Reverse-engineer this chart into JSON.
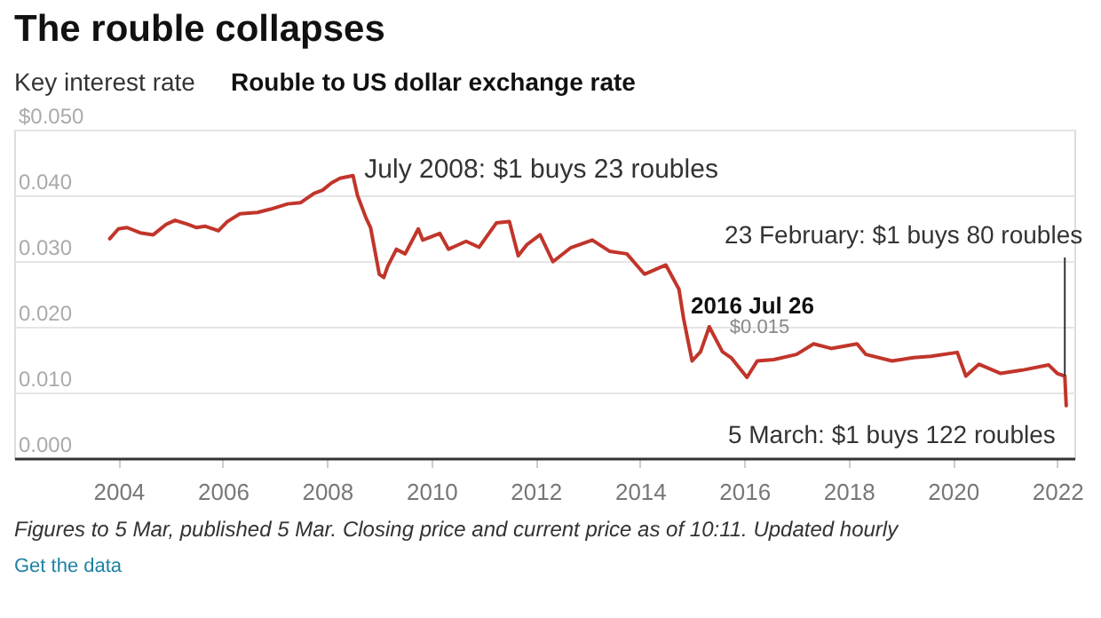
{
  "chart_data": {
    "type": "line",
    "title": "The rouble collapses",
    "subtitle": "Rouble to US dollar exchange rate",
    "x": [
      "2003-11",
      "2004-01",
      "2004-03",
      "2004-06",
      "2004-09",
      "2004-12",
      "2005-02",
      "2005-05",
      "2005-07",
      "2005-09",
      "2005-12",
      "2006-02",
      "2006-05",
      "2006-09",
      "2006-12",
      "2007-04",
      "2007-07",
      "2007-10",
      "2007-12",
      "2008-02",
      "2008-04",
      "2008-07",
      "2008-08",
      "2008-10",
      "2008-11",
      "2009-01",
      "2009-02",
      "2009-03",
      "2009-05",
      "2009-07",
      "2009-10",
      "2009-11",
      "2010-03",
      "2010-05",
      "2010-09",
      "2010-12",
      "2011-04",
      "2011-07",
      "2011-09",
      "2011-11",
      "2012-02",
      "2012-05",
      "2012-09",
      "2013-02",
      "2013-06",
      "2013-10",
      "2014-02",
      "2014-07",
      "2014-10",
      "2014-11",
      "2014-12",
      "2015-01",
      "2015-03",
      "2015-05",
      "2015-08",
      "2015-10",
      "2016-01-20",
      "2016-04",
      "2016-07-26",
      "2017-01",
      "2017-05",
      "2017-09",
      "2018-03",
      "2018-05",
      "2018-11",
      "2019-04",
      "2019-08",
      "2020-02",
      "2020-04",
      "2020-07",
      "2020-12",
      "2021-05",
      "2021-11",
      "2022-01",
      "2022-02-23",
      "2022-03-05"
    ],
    "series": [
      {
        "color": "#c1352b",
        "values": [
          0.0334,
          0.0349,
          0.0351,
          0.0343,
          0.034,
          0.0356,
          0.0362,
          0.0356,
          0.0351,
          0.0353,
          0.0346,
          0.036,
          0.0372,
          0.0374,
          0.0379,
          0.0387,
          0.0389,
          0.0403,
          0.0408,
          0.0419,
          0.0426,
          0.043,
          0.04,
          0.0365,
          0.0351,
          0.028,
          0.0275,
          0.0292,
          0.0318,
          0.0311,
          0.0349,
          0.0332,
          0.0342,
          0.0318,
          0.033,
          0.0321,
          0.0358,
          0.036,
          0.0308,
          0.0325,
          0.034,
          0.0299,
          0.032,
          0.0332,
          0.0315,
          0.0311,
          0.028,
          0.0294,
          0.0257,
          0.0214,
          0.0181,
          0.0148,
          0.0162,
          0.02,
          0.0162,
          0.0153,
          0.0123,
          0.0148,
          0.015,
          0.0158,
          0.0174,
          0.0167,
          0.0174,
          0.0158,
          0.0148,
          0.0153,
          0.0155,
          0.0161,
          0.0125,
          0.0143,
          0.0129,
          0.0134,
          0.0142,
          0.0129,
          0.0125,
          0.008
        ]
      }
    ],
    "xlim": [
      "2002-01-01",
      "2022-05-01"
    ],
    "xticks": [
      "2004",
      "2006",
      "2008",
      "2010",
      "2012",
      "2014",
      "2016",
      "2018",
      "2020",
      "2022"
    ],
    "ylim": [
      0,
      0.05
    ],
    "yticks": [
      {
        "value": 0,
        "label": "0.000"
      },
      {
        "value": 0.01,
        "label": "0.010"
      },
      {
        "value": 0.02,
        "label": "0.020"
      },
      {
        "value": 0.03,
        "label": "0.030"
      },
      {
        "value": 0.04,
        "label": "0.040"
      },
      {
        "value": 0.05,
        "label": "$0.050"
      }
    ],
    "grid": "y",
    "line_style": "solid",
    "marker": "none",
    "annotations": [
      {
        "text": "July 2008: $1 buys 23 roubles",
        "x": "2008-07",
        "y": 0.043
      },
      {
        "text": "2016 Jul 26",
        "x": "2016-07-26",
        "y": 0.015
      },
      {
        "text": "$0.015",
        "x": "2016-07-26",
        "y": 0.015
      },
      {
        "text": "23 February: $1 buys 80 roubles",
        "x": "2022-02-23",
        "y": 0.0125
      },
      {
        "text": "5 March: $1 buys 122 roubles",
        "x": "2022-03-05",
        "y": 0.008
      },
      "Key interest rate",
      "Figures to 5 Mar, published 5 Mar. Closing price and current price as of 10:11. Updated hourly",
      "Get the data"
    ]
  }
}
